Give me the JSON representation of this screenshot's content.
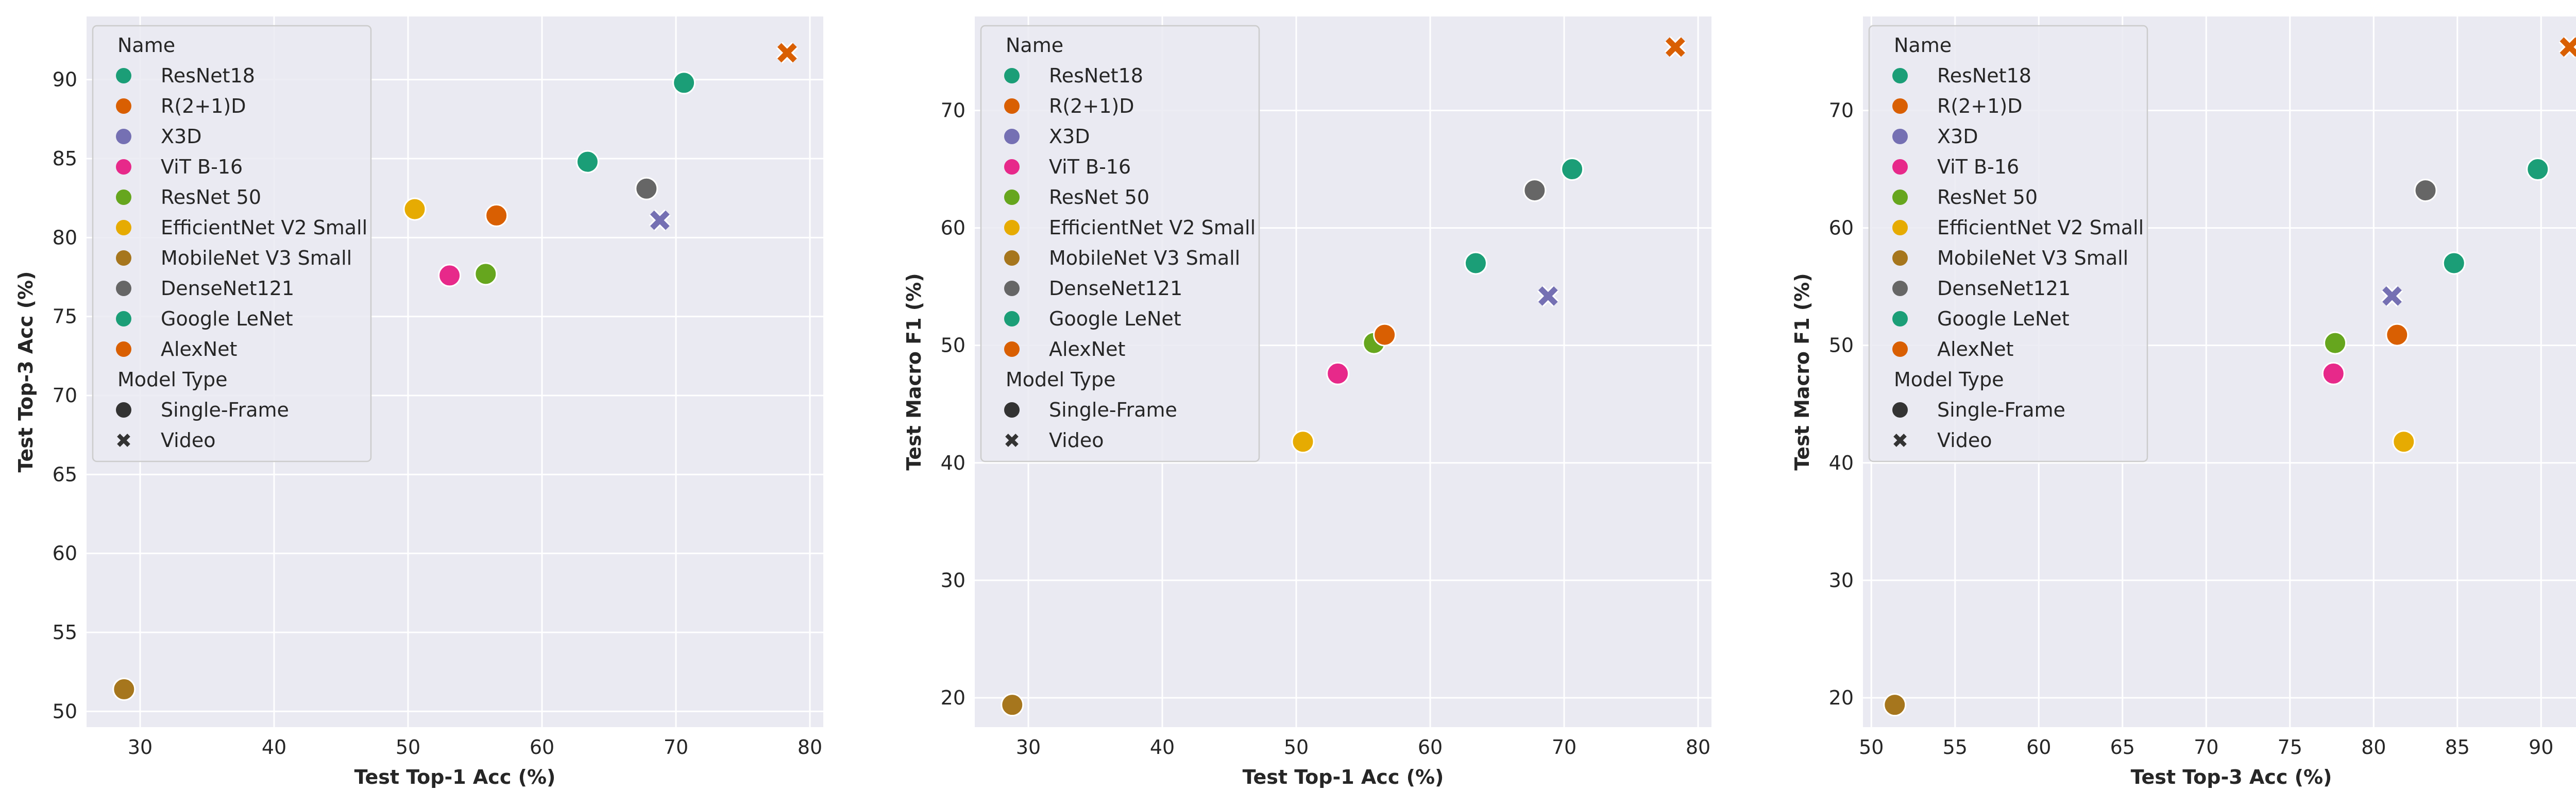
{
  "chart_data": [
    {
      "type": "scatter",
      "xlabel": "Test Top-1 Acc (%)",
      "ylabel": "Test Top-3 Acc (%)",
      "xlim": [
        26,
        81
      ],
      "ylim": [
        49,
        94
      ],
      "xticks": [
        30,
        40,
        50,
        60,
        70,
        80
      ],
      "yticks": [
        50,
        55,
        60,
        65,
        70,
        75,
        80,
        85,
        90
      ],
      "grid": true,
      "legend_position": "upper-left",
      "points": [
        {
          "name": "ResNet18",
          "model_type": "Single-Frame",
          "x": 70.6,
          "y": 89.8
        },
        {
          "name": "R(2+1)D",
          "model_type": "Video",
          "x": 78.3,
          "y": 91.7
        },
        {
          "name": "X3D",
          "model_type": "Video",
          "x": 68.8,
          "y": 81.1
        },
        {
          "name": "ViT B-16",
          "model_type": "Single-Frame",
          "x": 53.1,
          "y": 77.6
        },
        {
          "name": "ResNet 50",
          "model_type": "Single-Frame",
          "x": 55.8,
          "y": 77.7
        },
        {
          "name": "EfficientNet V2 Small",
          "model_type": "Single-Frame",
          "x": 50.5,
          "y": 81.8
        },
        {
          "name": "MobileNet V3 Small",
          "model_type": "Single-Frame",
          "x": 28.8,
          "y": 51.4
        },
        {
          "name": "DenseNet121",
          "model_type": "Single-Frame",
          "x": 67.8,
          "y": 83.1
        },
        {
          "name": "Google LeNet",
          "model_type": "Single-Frame",
          "x": 63.4,
          "y": 84.8
        },
        {
          "name": "AlexNet",
          "model_type": "Single-Frame",
          "x": 56.6,
          "y": 81.4
        }
      ]
    },
    {
      "type": "scatter",
      "xlabel": "Test Top-1 Acc (%)",
      "ylabel": "Test Macro F1 (%)",
      "xlim": [
        26,
        81
      ],
      "ylim": [
        17.5,
        78
      ],
      "xticks": [
        30,
        40,
        50,
        60,
        70,
        80
      ],
      "yticks": [
        20,
        30,
        40,
        50,
        60,
        70
      ],
      "grid": true,
      "legend_position": "upper-left",
      "points": [
        {
          "name": "ResNet18",
          "model_type": "Single-Frame",
          "x": 70.6,
          "y": 65.0
        },
        {
          "name": "R(2+1)D",
          "model_type": "Video",
          "x": 78.3,
          "y": 75.4
        },
        {
          "name": "X3D",
          "model_type": "Video",
          "x": 68.8,
          "y": 54.2
        },
        {
          "name": "ViT B-16",
          "model_type": "Single-Frame",
          "x": 53.1,
          "y": 47.6
        },
        {
          "name": "ResNet 50",
          "model_type": "Single-Frame",
          "x": 55.8,
          "y": 50.2
        },
        {
          "name": "EfficientNet V2 Small",
          "model_type": "Single-Frame",
          "x": 50.5,
          "y": 41.8
        },
        {
          "name": "MobileNet V3 Small",
          "model_type": "Single-Frame",
          "x": 28.8,
          "y": 19.4
        },
        {
          "name": "DenseNet121",
          "model_type": "Single-Frame",
          "x": 67.8,
          "y": 63.2
        },
        {
          "name": "Google LeNet",
          "model_type": "Single-Frame",
          "x": 63.4,
          "y": 57.0
        },
        {
          "name": "AlexNet",
          "model_type": "Single-Frame",
          "x": 56.6,
          "y": 50.9
        }
      ]
    },
    {
      "type": "scatter",
      "xlabel": "Test Top-3 Acc (%)",
      "ylabel": "Test Macro F1 (%)",
      "xlim": [
        49.5,
        93.5
      ],
      "ylim": [
        17.5,
        78
      ],
      "xticks": [
        50,
        55,
        60,
        65,
        70,
        75,
        80,
        85,
        90
      ],
      "yticks": [
        20,
        30,
        40,
        50,
        60,
        70
      ],
      "grid": true,
      "legend_position": "upper-left",
      "points": [
        {
          "name": "ResNet18",
          "model_type": "Single-Frame",
          "x": 89.8,
          "y": 65.0
        },
        {
          "name": "R(2+1)D",
          "model_type": "Video",
          "x": 91.7,
          "y": 75.4
        },
        {
          "name": "X3D",
          "model_type": "Video",
          "x": 81.1,
          "y": 54.2
        },
        {
          "name": "ViT B-16",
          "model_type": "Single-Frame",
          "x": 77.6,
          "y": 47.6
        },
        {
          "name": "ResNet 50",
          "model_type": "Single-Frame",
          "x": 77.7,
          "y": 50.2
        },
        {
          "name": "EfficientNet V2 Small",
          "model_type": "Single-Frame",
          "x": 81.8,
          "y": 41.8
        },
        {
          "name": "MobileNet V3 Small",
          "model_type": "Single-Frame",
          "x": 51.4,
          "y": 19.4
        },
        {
          "name": "DenseNet121",
          "model_type": "Single-Frame",
          "x": 83.1,
          "y": 63.2
        },
        {
          "name": "Google LeNet",
          "model_type": "Single-Frame",
          "x": 84.8,
          "y": 57.0
        },
        {
          "name": "AlexNet",
          "model_type": "Single-Frame",
          "x": 81.4,
          "y": 50.9
        }
      ]
    }
  ],
  "legend": {
    "name_title": "Name",
    "names": [
      {
        "label": "ResNet18",
        "color": "#1b9e77"
      },
      {
        "label": "R(2+1)D",
        "color": "#d95f02"
      },
      {
        "label": "X3D",
        "color": "#7570b3"
      },
      {
        "label": "ViT B-16",
        "color": "#e7298a"
      },
      {
        "label": "ResNet 50",
        "color": "#66a61e"
      },
      {
        "label": "EfficientNet V2 Small",
        "color": "#e6ab02"
      },
      {
        "label": "MobileNet V3 Small",
        "color": "#a6761d"
      },
      {
        "label": "DenseNet121",
        "color": "#666666"
      },
      {
        "label": "Google LeNet",
        "color": "#1b9e77"
      },
      {
        "label": "AlexNet",
        "color": "#d95f02"
      }
    ],
    "type_title": "Model Type",
    "types": [
      {
        "label": "Single-Frame",
        "marker": "circle"
      },
      {
        "label": "Video",
        "marker": "cross"
      }
    ],
    "marker_color": "#333333"
  }
}
